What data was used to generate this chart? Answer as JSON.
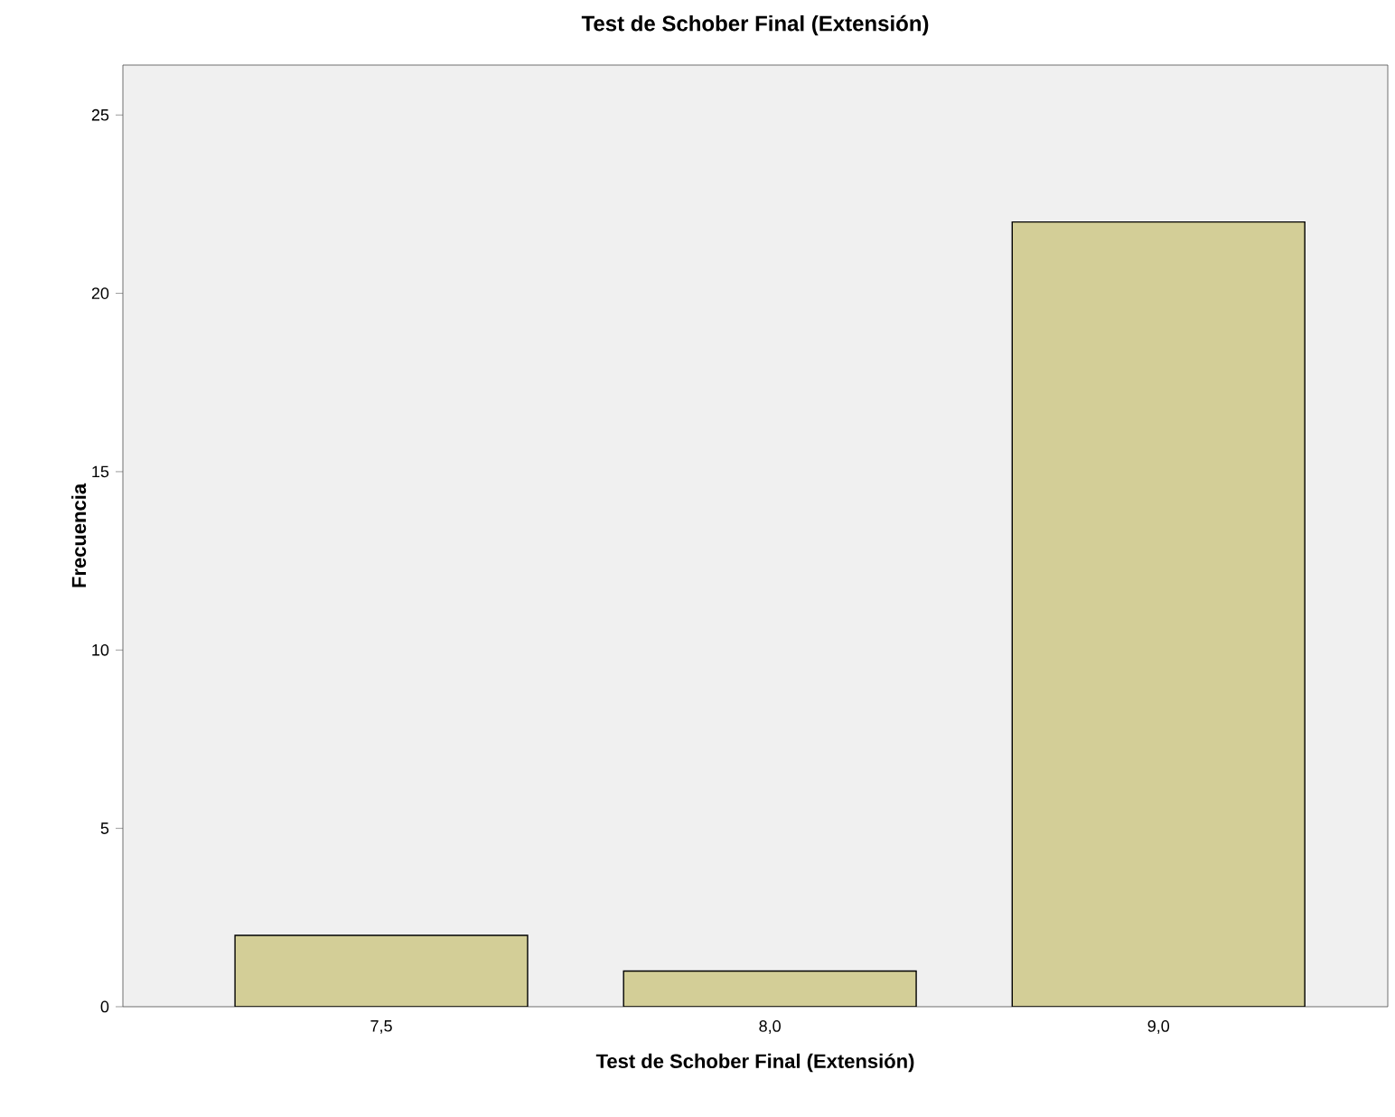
{
  "chart_data": {
    "type": "bar",
    "title": "Test de Schober Final (Extensión)",
    "xlabel": "Test de Schober Final (Extensión)",
    "ylabel": "Frecuencia",
    "categories": [
      "7,5",
      "8,0",
      "9,0"
    ],
    "values": [
      2,
      1,
      22
    ],
    "color": "#d3ce97",
    "ylim": [
      0,
      26.4
    ],
    "yticks": [
      0,
      5,
      10,
      15,
      20,
      25
    ]
  }
}
